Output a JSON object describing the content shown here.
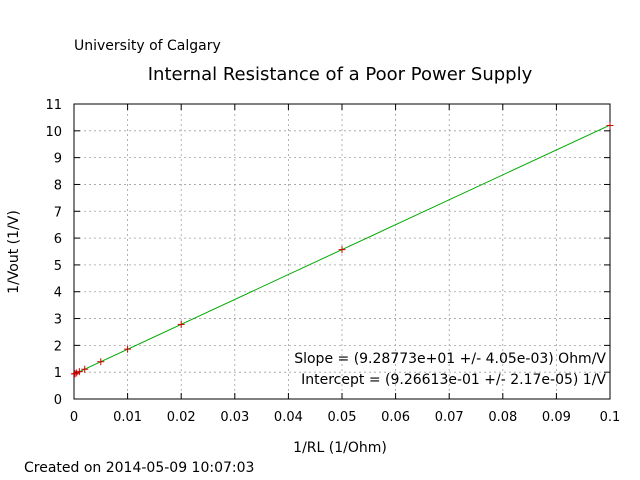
{
  "header": {
    "institution": "University of Calgary"
  },
  "footer": {
    "created": "Created on 2014-05-09 10:07:03"
  },
  "chart_data": {
    "type": "scatter",
    "title": "Internal Resistance of a Poor Power Supply",
    "xlabel": "1/RL (1/Ohm)",
    "ylabel": "1/Vout (1/V)",
    "xlim": [
      0,
      0.1
    ],
    "ylim": [
      0,
      11
    ],
    "x_ticks": [
      "0",
      "0.01",
      "0.02",
      "0.03",
      "0.04",
      "0.05",
      "0.06",
      "0.07",
      "0.08",
      "0.09",
      "0.1"
    ],
    "y_ticks": [
      "0",
      "1",
      "2",
      "3",
      "4",
      "5",
      "6",
      "7",
      "8",
      "9",
      "10",
      "11"
    ],
    "grid": true,
    "points_color": "#cc0000",
    "fit_color": "#00aa00",
    "series": [
      {
        "x": [
          0.0001,
          0.0002,
          0.0005,
          0.001,
          0.002,
          0.005,
          0.01,
          0.02,
          0.05,
          0.1
        ],
        "y": [
          0.936,
          0.945,
          0.973,
          1.02,
          1.11,
          1.39,
          1.86,
          2.78,
          5.57,
          10.2
        ]
      }
    ],
    "fit": {
      "slope": 92.8773,
      "intercept": 0.926613
    },
    "annotations": [
      "Slope = (9.28773e+01 +/- 4.05e-03) Ohm/V",
      "Intercept = (9.26613e-01 +/- 2.17e-05) 1/V"
    ]
  }
}
